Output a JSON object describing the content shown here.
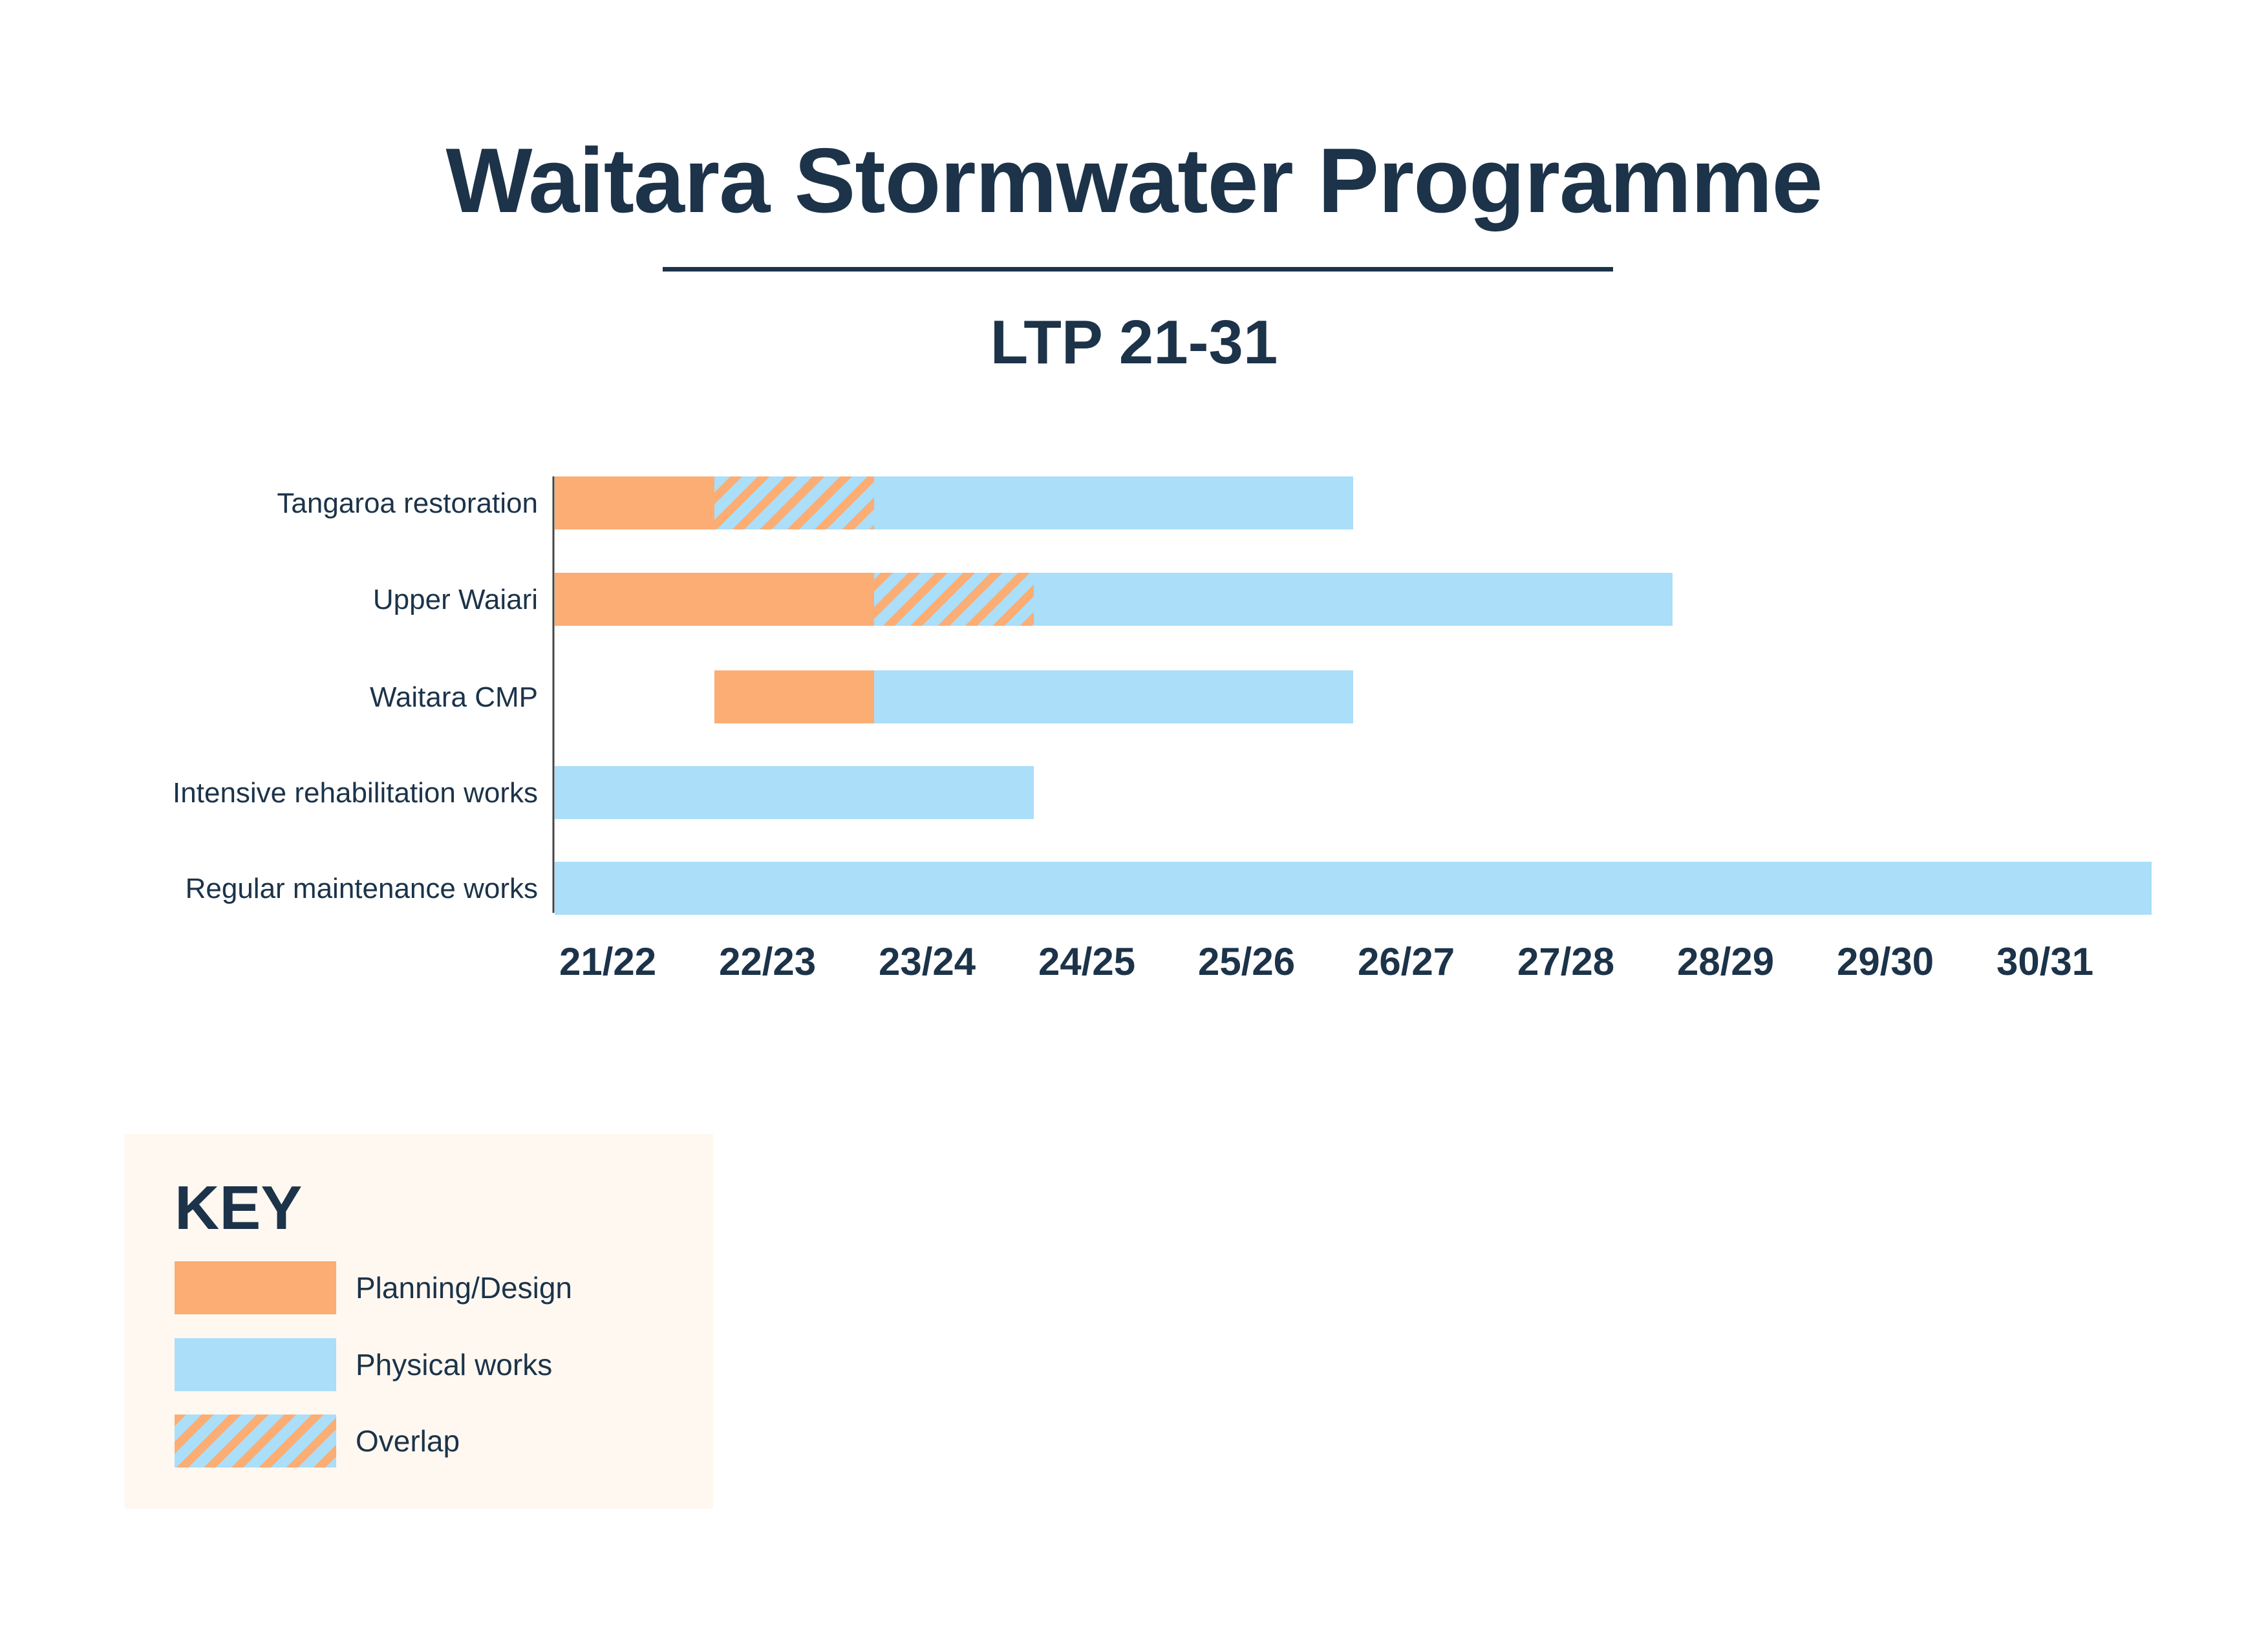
{
  "title": "Waitara Stormwater Programme",
  "subtitle": "LTP 21-31",
  "colors": {
    "planning": "#fbad73",
    "physical": "#aadef9",
    "text": "#1c3349",
    "axis": "#444444"
  },
  "chart_data": {
    "type": "gantt",
    "categories": [
      "21/22",
      "22/23",
      "23/24",
      "24/25",
      "25/26",
      "26/27",
      "27/28",
      "28/29",
      "29/30",
      "30/31"
    ],
    "series": [
      {
        "name": "Planning/Design",
        "color": "#fbad73"
      },
      {
        "name": "Physical works",
        "color": "#aadef9"
      },
      {
        "name": "Overlap",
        "color": "hatch"
      }
    ],
    "tasks": [
      {
        "name": "Tangaroa restoration",
        "segments": [
          {
            "phase": "Planning/Design",
            "start": "21/22",
            "end": "21/22"
          },
          {
            "phase": "Overlap",
            "start": "22/23",
            "end": "22/23"
          },
          {
            "phase": "Physical works",
            "start": "23/24",
            "end": "25/26"
          }
        ]
      },
      {
        "name": "Upper Waiari",
        "segments": [
          {
            "phase": "Planning/Design",
            "start": "21/22",
            "end": "22/23"
          },
          {
            "phase": "Overlap",
            "start": "23/24",
            "end": "23/24"
          },
          {
            "phase": "Physical works",
            "start": "24/25",
            "end": "27/28"
          }
        ]
      },
      {
        "name": "Waitara CMP",
        "segments": [
          {
            "phase": "Planning/Design",
            "start": "22/23",
            "end": "22/23"
          },
          {
            "phase": "Physical works",
            "start": "23/24",
            "end": "25/26"
          }
        ]
      },
      {
        "name": "Intensive rehabilitation works",
        "segments": [
          {
            "phase": "Physical works",
            "start": "21/22",
            "end": "23/24"
          }
        ]
      },
      {
        "name": "Regular maintenance works",
        "segments": [
          {
            "phase": "Physical works",
            "start": "21/22",
            "end": "30/31"
          }
        ]
      }
    ]
  },
  "legend": {
    "title": "KEY",
    "items": [
      {
        "label": "Planning/Design",
        "swatch": "planning"
      },
      {
        "label": "Physical works",
        "swatch": "physical"
      },
      {
        "label": "Overlap",
        "swatch": "hatch"
      }
    ]
  }
}
